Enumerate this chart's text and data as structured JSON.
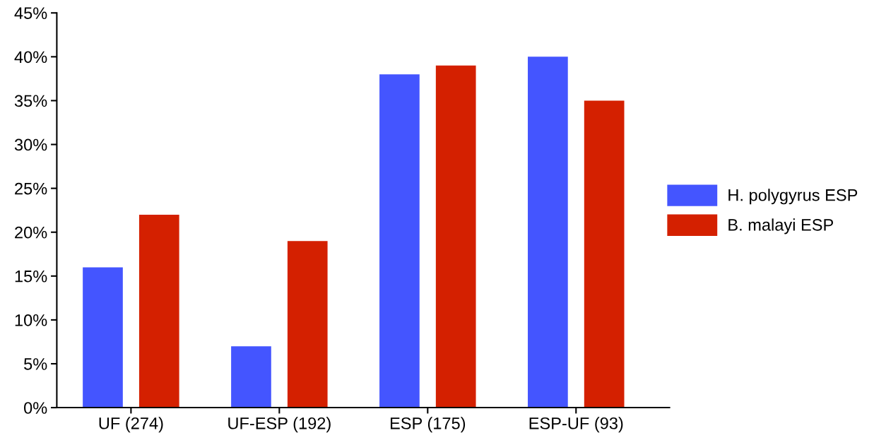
{
  "chart_data": {
    "type": "bar",
    "categories": [
      "UF (274)",
      "UF-ESP (192)",
      "ESP (175)",
      "ESP-UF (93)"
    ],
    "series": [
      {
        "name": "H. polygyrus ESP",
        "color": "#4455ff",
        "values": [
          16,
          7,
          38,
          40
        ]
      },
      {
        "name": "B. malayi ESP",
        "color": "#d42000",
        "values": [
          22,
          19,
          39,
          35
        ]
      }
    ],
    "ylim": [
      0,
      45
    ],
    "yticks": [
      {
        "value": 0,
        "label": "0%"
      },
      {
        "value": 5,
        "label": "5%"
      },
      {
        "value": 10,
        "label": "10%"
      },
      {
        "value": 15,
        "label": "15%"
      },
      {
        "value": 20,
        "label": "20%"
      },
      {
        "value": 25,
        "label": "25%"
      },
      {
        "value": 30,
        "label": "30%"
      },
      {
        "value": 35,
        "label": "35%"
      },
      {
        "value": 40,
        "label": "40%"
      },
      {
        "value": 45,
        "label": "45%"
      }
    ],
    "grid": false,
    "legend": "right"
  }
}
